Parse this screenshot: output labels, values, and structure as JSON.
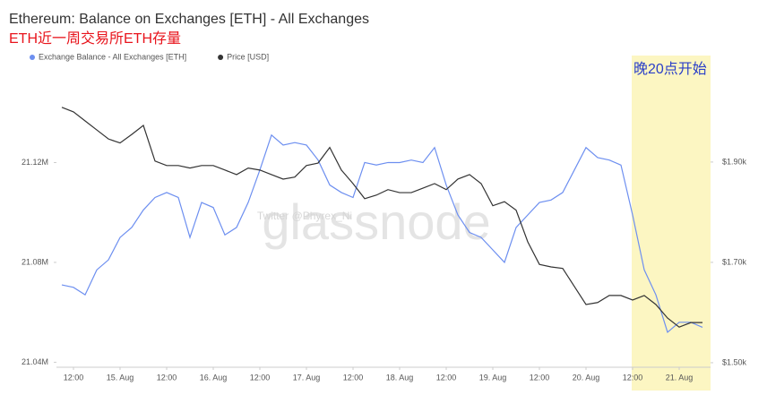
{
  "chart_data": {
    "type": "line",
    "title": "Ethereum: Balance on Exchanges [ETH] - All Exchanges",
    "subtitle": "ETH近一周交易所ETH存量",
    "annotation": "晚20点开始",
    "watermark": "glassnode",
    "watermark_credit": "Twitter @Phyrex_Ni",
    "categories": [
      null,
      "12:00",
      null,
      null,
      null,
      "15. Aug",
      null,
      null,
      null,
      "12:00",
      null,
      null,
      null,
      "16. Aug",
      null,
      null,
      null,
      "12:00",
      null,
      null,
      null,
      "17. Aug",
      null,
      null,
      null,
      "12:00",
      null,
      null,
      null,
      "18. Aug",
      null,
      null,
      null,
      "12:00",
      null,
      null,
      null,
      "19. Aug",
      null,
      null,
      null,
      "12:00",
      null,
      null,
      null,
      "20. Aug",
      null,
      null,
      null,
      "12:00",
      null,
      null,
      null,
      "21. Aug",
      null,
      null
    ],
    "series": [
      {
        "name": "Exchange Balance - All Exchanges [ETH]",
        "color": "#6d8ff0",
        "axis": "y",
        "values": [
          21071000,
          21070000,
          21067000,
          21077000,
          21081000,
          21090000,
          21094000,
          21101000,
          21106000,
          21108000,
          21106000,
          21090000,
          21104000,
          21102000,
          21091000,
          21094000,
          21104000,
          21117000,
          21131000,
          21127000,
          21128000,
          21127000,
          21121000,
          21111000,
          21108000,
          21106000,
          21120000,
          21119000,
          21120000,
          21120000,
          21121000,
          21120000,
          21126000,
          21111000,
          21099000,
          21092000,
          21090000,
          21085000,
          21080000,
          21094000,
          21099000,
          21104000,
          21105000,
          21108000,
          21117000,
          21126000,
          21122000,
          21121000,
          21119000,
          21099000,
          21077000,
          21067000,
          21052000,
          21056000,
          21056000,
          21054000
        ]
      },
      {
        "name": "Price [USD]",
        "color": "#333333",
        "axis": "y2",
        "values": [
          2009,
          2000,
          1982,
          1964,
          1946,
          1938,
          1955,
          1973,
          1902,
          1893,
          1893,
          1888,
          1893,
          1893,
          1884,
          1875,
          1888,
          1884,
          1875,
          1866,
          1870,
          1893,
          1898,
          1929,
          1884,
          1857,
          1827,
          1834,
          1845,
          1839,
          1839,
          1848,
          1857,
          1845,
          1866,
          1875,
          1857,
          1813,
          1821,
          1804,
          1741,
          1696,
          1691,
          1688,
          1652,
          1616,
          1620,
          1634,
          1634,
          1625,
          1634,
          1616,
          1589,
          1571,
          1580,
          1580
        ]
      }
    ],
    "ylim": [
      21038000,
      21160000
    ],
    "yticks": [
      {
        "value": 21040000,
        "label": "21.04M"
      },
      {
        "value": 21080000,
        "label": "21.08M"
      },
      {
        "value": 21120000,
        "label": "21.12M"
      }
    ],
    "y2lim": [
      1491,
      2098
    ],
    "y2ticks": [
      {
        "value": 1500,
        "label": "$1.50k"
      },
      {
        "value": 1700,
        "label": "$1.70k"
      },
      {
        "value": 1900,
        "label": "$1.90k"
      }
    ],
    "grid": false
  }
}
